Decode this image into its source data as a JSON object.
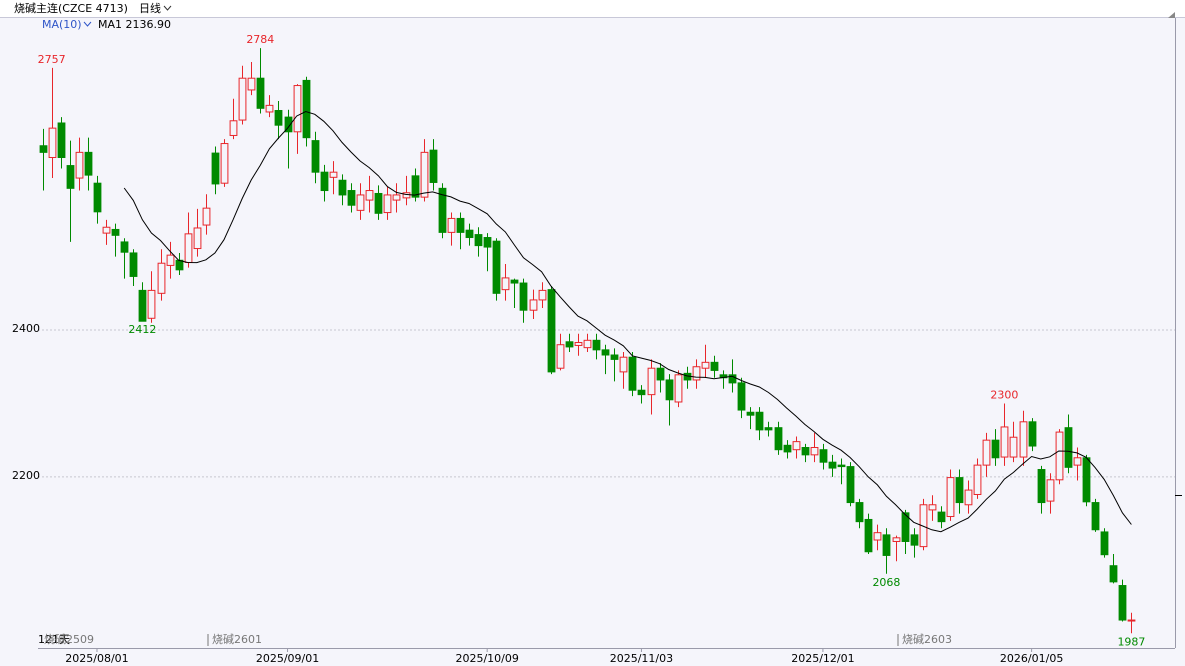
{
  "chart_data": {
    "type": "candlestick",
    "title": "烧碱主连(CZCE 4713)",
    "period": "日线",
    "indicator": "MA(10)",
    "indicator_value": "MA1 2136.90",
    "day_count": "121天",
    "contracts": [
      "烧碱2509",
      "烧碱2601",
      "烧碱2603"
    ],
    "up_color": "#e8262b",
    "down_color": "#008a00",
    "ma_color": "#000000",
    "ma_period": 10,
    "ylim": [
      1971,
      2825
    ],
    "yticks": [
      2200,
      2400
    ],
    "grid": true,
    "xlim": [
      -0.5,
      124.8
    ],
    "xticks": [
      {
        "value": 6,
        "label": "2025/08/01"
      },
      {
        "value": 27,
        "label": "2025/09/01"
      },
      {
        "value": 49,
        "label": "2025/10/09"
      },
      {
        "value": 66,
        "label": "2025/11/03"
      },
      {
        "value": 86,
        "label": "2025/12/01"
      },
      {
        "value": 109,
        "label": "2026/01/05"
      }
    ],
    "high_labels": [
      2757,
      2784,
      2300
    ],
    "low_labels": [
      2412,
      2068,
      1987
    ],
    "ohlc": [
      [
        2651,
        2674,
        2590,
        2642
      ],
      [
        2635,
        2757,
        2607,
        2675
      ],
      [
        2682,
        2690,
        2620,
        2635
      ],
      [
        2624,
        2658,
        2520,
        2593
      ],
      [
        2607,
        2662,
        2590,
        2642
      ],
      [
        2642,
        2662,
        2590,
        2611
      ],
      [
        2600,
        2610,
        2545,
        2561
      ],
      [
        2532,
        2550,
        2516,
        2540
      ],
      [
        2537,
        2545,
        2500,
        2529
      ],
      [
        2520,
        2525,
        2470,
        2506
      ],
      [
        2505,
        2510,
        2460,
        2473
      ],
      [
        2454,
        2465,
        2412,
        2412
      ],
      [
        2416,
        2480,
        2410,
        2454
      ],
      [
        2450,
        2510,
        2440,
        2491
      ],
      [
        2488,
        2520,
        2470,
        2502
      ],
      [
        2495,
        2505,
        2475,
        2482
      ],
      [
        2492,
        2560,
        2485,
        2531
      ],
      [
        2511,
        2565,
        2500,
        2539
      ],
      [
        2543,
        2585,
        2530,
        2566
      ],
      [
        2641,
        2650,
        2585,
        2599
      ],
      [
        2600,
        2660,
        2595,
        2654
      ],
      [
        2665,
        2715,
        2660,
        2685
      ],
      [
        2686,
        2760,
        2680,
        2743
      ],
      [
        2727,
        2765,
        2720,
        2743
      ],
      [
        2743,
        2784,
        2695,
        2702
      ],
      [
        2697,
        2720,
        2690,
        2706
      ],
      [
        2699,
        2712,
        2660,
        2679
      ],
      [
        2690,
        2700,
        2620,
        2670
      ],
      [
        2670,
        2735,
        2640,
        2733
      ],
      [
        2740,
        2745,
        2650,
        2662
      ],
      [
        2658,
        2670,
        2600,
        2615
      ],
      [
        2615,
        2625,
        2575,
        2590
      ],
      [
        2608,
        2630,
        2585,
        2615
      ],
      [
        2604,
        2612,
        2570,
        2584
      ],
      [
        2590,
        2600,
        2560,
        2570
      ],
      [
        2563,
        2600,
        2550,
        2584
      ],
      [
        2577,
        2610,
        2560,
        2590
      ],
      [
        2586,
        2597,
        2550,
        2559
      ],
      [
        2560,
        2595,
        2550,
        2584
      ],
      [
        2577,
        2600,
        2560,
        2584
      ],
      [
        2580,
        2610,
        2570,
        2587
      ],
      [
        2610,
        2620,
        2575,
        2581
      ],
      [
        2581,
        2660,
        2575,
        2642
      ],
      [
        2645,
        2660,
        2590,
        2601
      ],
      [
        2593,
        2600,
        2525,
        2533
      ],
      [
        2533,
        2560,
        2515,
        2552
      ],
      [
        2552,
        2560,
        2510,
        2533
      ],
      [
        2536,
        2545,
        2515,
        2526
      ],
      [
        2530,
        2540,
        2500,
        2515
      ],
      [
        2526,
        2532,
        2480,
        2513
      ],
      [
        2521,
        2525,
        2440,
        2450
      ],
      [
        2455,
        2490,
        2440,
        2471
      ],
      [
        2468,
        2470,
        2430,
        2464
      ],
      [
        2464,
        2470,
        2410,
        2427
      ],
      [
        2427,
        2455,
        2415,
        2441
      ],
      [
        2441,
        2465,
        2430,
        2454
      ],
      [
        2455,
        2460,
        2340,
        2343
      ],
      [
        2348,
        2395,
        2345,
        2380
      ],
      [
        2384,
        2395,
        2370,
        2377
      ],
      [
        2379,
        2395,
        2365,
        2383
      ],
      [
        2376,
        2395,
        2370,
        2386
      ],
      [
        2386,
        2395,
        2360,
        2373
      ],
      [
        2373,
        2380,
        2340,
        2366
      ],
      [
        2366,
        2375,
        2330,
        2360
      ],
      [
        2343,
        2370,
        2320,
        2363
      ],
      [
        2363,
        2370,
        2310,
        2318
      ],
      [
        2318,
        2325,
        2300,
        2312
      ],
      [
        2312,
        2360,
        2285,
        2348
      ],
      [
        2348,
        2355,
        2315,
        2332
      ],
      [
        2332,
        2340,
        2270,
        2305
      ],
      [
        2302,
        2345,
        2295,
        2339
      ],
      [
        2341,
        2350,
        2320,
        2332
      ],
      [
        2332,
        2360,
        2320,
        2350
      ],
      [
        2348,
        2380,
        2335,
        2356
      ],
      [
        2356,
        2365,
        2335,
        2345
      ],
      [
        2339,
        2345,
        2320,
        2335
      ],
      [
        2339,
        2360,
        2315,
        2328
      ],
      [
        2328,
        2335,
        2280,
        2291
      ],
      [
        2288,
        2295,
        2265,
        2284
      ],
      [
        2288,
        2295,
        2250,
        2264
      ],
      [
        2267,
        2275,
        2255,
        2264
      ],
      [
        2267,
        2275,
        2230,
        2237
      ],
      [
        2243,
        2250,
        2225,
        2234
      ],
      [
        2237,
        2255,
        2225,
        2248
      ],
      [
        2240,
        2245,
        2220,
        2230
      ],
      [
        2230,
        2260,
        2220,
        2240
      ],
      [
        2237,
        2245,
        2210,
        2220
      ],
      [
        2220,
        2230,
        2200,
        2212
      ],
      [
        2216,
        2225,
        2190,
        2214
      ],
      [
        2214,
        2220,
        2160,
        2165
      ],
      [
        2165,
        2170,
        2130,
        2139
      ],
      [
        2142,
        2150,
        2095,
        2098
      ],
      [
        2114,
        2135,
        2100,
        2124
      ],
      [
        2121,
        2130,
        2068,
        2093
      ],
      [
        2112,
        2120,
        2085,
        2117
      ],
      [
        2151,
        2155,
        2095,
        2112
      ],
      [
        2121,
        2130,
        2090,
        2107
      ],
      [
        2105,
        2170,
        2100,
        2162
      ],
      [
        2155,
        2175,
        2140,
        2162
      ],
      [
        2152,
        2160,
        2130,
        2139
      ],
      [
        2146,
        2210,
        2140,
        2199
      ],
      [
        2199,
        2210,
        2150,
        2165
      ],
      [
        2162,
        2195,
        2150,
        2182
      ],
      [
        2176,
        2225,
        2170,
        2216
      ],
      [
        2216,
        2260,
        2200,
        2250
      ],
      [
        2250,
        2265,
        2215,
        2226
      ],
      [
        2227,
        2300,
        2215,
        2268
      ],
      [
        2227,
        2275,
        2220,
        2254
      ],
      [
        2227,
        2290,
        2215,
        2275
      ],
      [
        2275,
        2280,
        2235,
        2242
      ],
      [
        2210,
        2215,
        2150,
        2165
      ],
      [
        2167,
        2205,
        2150,
        2196
      ],
      [
        2196,
        2265,
        2190,
        2261
      ],
      [
        2267,
        2285,
        2205,
        2213
      ],
      [
        2216,
        2240,
        2195,
        2226
      ],
      [
        2226,
        2230,
        2160,
        2166
      ],
      [
        2165,
        2170,
        2125,
        2128
      ],
      [
        2125,
        2130,
        2090,
        2094
      ],
      [
        2079,
        2095,
        2055,
        2057
      ],
      [
        2052,
        2060,
        2003,
        2005
      ],
      [
        2004,
        2015,
        1987,
        2005
      ]
    ]
  }
}
